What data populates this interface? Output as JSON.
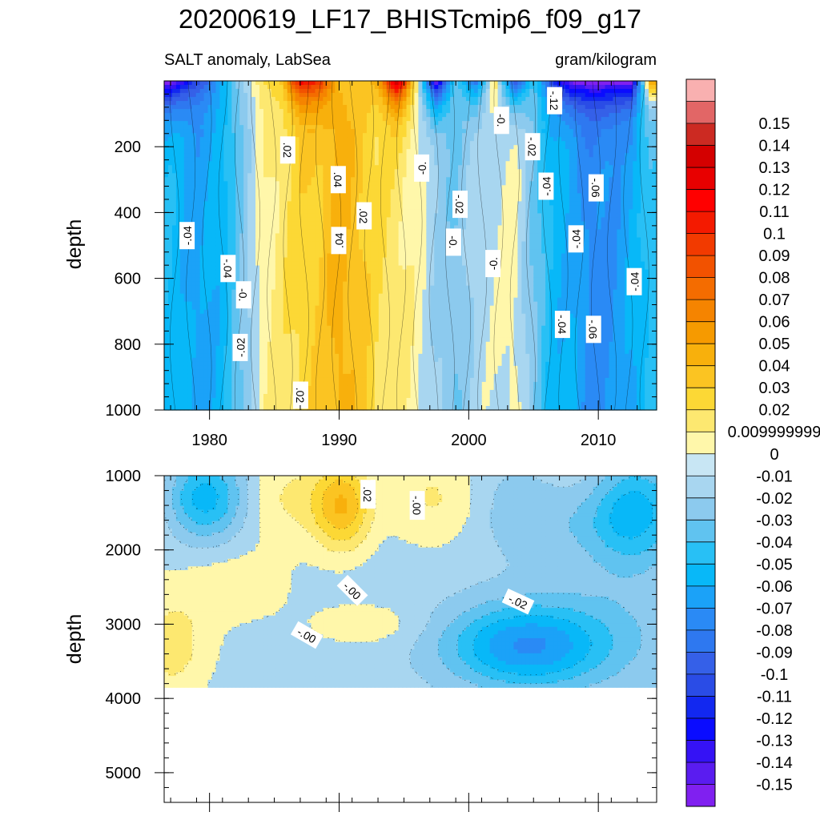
{
  "chart_data": [
    {
      "type": "heatmap",
      "panel": "upper",
      "title": "20200619_LF17_BHISTcmip6_f09_g17",
      "left_subtitle": "SALT anomaly, LabSea",
      "right_subtitle": "gram/kilogram",
      "xlabel": "",
      "ylabel": "depth",
      "xlim": [
        1976.5,
        2014.5
      ],
      "ylim": [
        1000,
        0
      ],
      "xticks": [
        1980,
        1990,
        2000,
        2010
      ],
      "xtick_labels": [
        "1980",
        "1990",
        "2000",
        "2010"
      ],
      "yticks": [
        200,
        400,
        600,
        800,
        1000
      ],
      "ytick_labels": [
        "200",
        "400",
        "600",
        "800",
        "1000"
      ],
      "contour_labels": [
        "-.04",
        "-.04",
        "-0.",
        "-.02",
        ".02",
        ".04",
        ".04",
        ".02",
        ".02",
        "-0.",
        "-0.",
        "-.02",
        "-0.",
        "-0.",
        "-.02",
        "-.04",
        "-.12",
        "-.06",
        "-.04",
        "-.04",
        "-.06",
        "-.04"
      ],
      "columns": [
        {
          "year": 1977.0,
          "value": -0.04,
          "surface": -0.15
        },
        {
          "year": 1979.0,
          "value": -0.055,
          "surface": -0.1
        },
        {
          "year": 1981.0,
          "value": -0.045,
          "surface": -0.05
        },
        {
          "year": 1982.5,
          "value": -0.02,
          "surface": -0.01
        },
        {
          "year": 1984.0,
          "value": 0.005,
          "surface": 0.02
        },
        {
          "year": 1985.5,
          "value": 0.015,
          "surface": 0.03
        },
        {
          "year": 1987.0,
          "value": 0.025,
          "surface": 0.12
        },
        {
          "year": 1988.5,
          "value": 0.03,
          "surface": 0.1
        },
        {
          "year": 1990.0,
          "value": 0.045,
          "surface": 0.04
        },
        {
          "year": 1991.5,
          "value": 0.035,
          "surface": 0.03
        },
        {
          "year": 1993.0,
          "value": 0.02,
          "surface": 0.05
        },
        {
          "year": 1994.5,
          "value": 0.015,
          "surface": 0.15
        },
        {
          "year": 1996.0,
          "value": 0.005,
          "surface": 0.01
        },
        {
          "year": 1997.5,
          "value": -0.01,
          "surface": -0.15
        },
        {
          "year": 1999.0,
          "value": -0.02,
          "surface": -0.02
        },
        {
          "year": 2000.5,
          "value": -0.005,
          "surface": -0.08
        },
        {
          "year": 2002.0,
          "value": -0.002,
          "surface": 0.02
        },
        {
          "year": 2003.5,
          "value": 0.005,
          "surface": -0.1
        },
        {
          "year": 2005.0,
          "value": -0.02,
          "surface": -0.03
        },
        {
          "year": 2006.5,
          "value": -0.045,
          "surface": -0.1
        },
        {
          "year": 2008.0,
          "value": -0.05,
          "surface": -0.15
        },
        {
          "year": 2009.5,
          "value": -0.065,
          "surface": -0.15
        },
        {
          "year": 2011.0,
          "value": -0.06,
          "surface": -0.15
        },
        {
          "year": 2012.5,
          "value": -0.05,
          "surface": -0.15
        },
        {
          "year": 2014.0,
          "value": -0.035,
          "surface": 0.05
        }
      ]
    },
    {
      "type": "heatmap",
      "panel": "lower",
      "xlabel": "",
      "ylabel": "depth",
      "xlim": [
        1976.5,
        2014.5
      ],
      "ylim": [
        5400,
        1000
      ],
      "data_bottom_depth": 3850,
      "yticks": [
        1000,
        2000,
        3000,
        4000,
        5000
      ],
      "ytick_labels": [
        "1000",
        "2000",
        "3000",
        "4000",
        "5000"
      ],
      "contour_labels": [
        ".02",
        "-.00",
        "-.00",
        "-.00",
        "-.02"
      ],
      "regions": [
        {
          "name": "shallow-band",
          "depth_range": [
            1000,
            2200
          ],
          "mean_value": 0.01
        },
        {
          "name": "orange-core",
          "year": 1990,
          "depth_range": [
            1000,
            2000
          ],
          "value": 0.04
        },
        {
          "name": "west-negative",
          "year": 1980,
          "depth_range": [
            1000,
            2000
          ],
          "value": -0.04
        },
        {
          "name": "east-negative",
          "year": 2012,
          "depth_range": [
            1000,
            2000
          ],
          "value": -0.04
        },
        {
          "name": "deep-negative-core",
          "year": 2004,
          "depth_range": [
            3000,
            3600
          ],
          "value": -0.05
        },
        {
          "name": "deep-southwest-positive",
          "year": 1978,
          "depth_range": [
            2800,
            3850
          ],
          "value": 0.01
        }
      ]
    }
  ],
  "colorbar": {
    "colors": [
      "#8020f0",
      "#5a1cf0",
      "#3512f5",
      "#0a0cff",
      "#1228f0",
      "#2a4ce6",
      "#3560e8",
      "#2e78f0",
      "#2a8af5",
      "#1ba2f8",
      "#08b8f8",
      "#28c0f5",
      "#60c3f0",
      "#8ccaee",
      "#a8d6f0",
      "#c8e6f4",
      "#fff7aa",
      "#fde870",
      "#fcd835",
      "#fbc422",
      "#f8b00c",
      "#f69a00",
      "#f58400",
      "#f46c00",
      "#f25200",
      "#f23a00",
      "#f41a00",
      "#ff0000",
      "#e80000",
      "#d40000",
      "#cc2a22",
      "#e26666",
      "#f9b0b0"
    ],
    "labels": [
      "-0.15",
      "-0.14",
      "-0.13",
      "-0.12",
      "-0.11",
      "-0.1",
      "-0.09",
      "-0.08",
      "-0.07",
      "-0.06",
      "-0.05",
      "-0.04",
      "-0.03",
      "-0.02",
      "-0.01",
      "0",
      "0.009999999",
      "0.02",
      "0.03",
      "0.04",
      "0.05",
      "0.06",
      "0.07",
      "0.08",
      "0.09",
      "0.1",
      "0.11",
      "0.12",
      "0.13",
      "0.14",
      "0.15"
    ]
  }
}
